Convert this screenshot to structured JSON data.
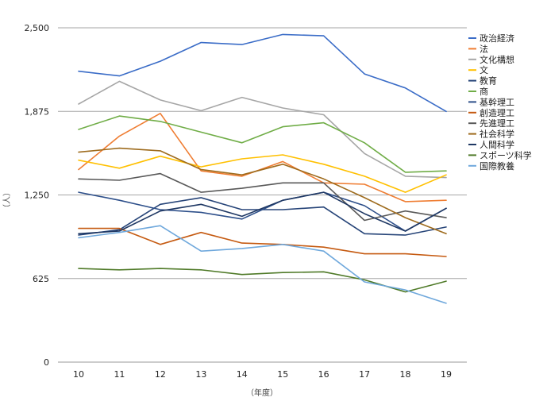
{
  "chart_data": {
    "type": "line",
    "xlabel": "（年度）",
    "ylabel": "（人）",
    "x": [
      "10",
      "11",
      "12",
      "13",
      "14",
      "15",
      "16",
      "17",
      "18",
      "19"
    ],
    "ylim": [
      0,
      2500
    ],
    "yticks": [
      0,
      625,
      1250,
      1875,
      2500
    ],
    "ytick_labels": [
      "0",
      "625",
      "1,250",
      "1,875",
      "2,500"
    ],
    "grid": "horizontal",
    "legend_position": "right",
    "series": [
      {
        "name": "政治経済",
        "color": "#3a6cc7",
        "values": [
          2175,
          2140,
          2250,
          2390,
          2375,
          2450,
          2440,
          2155,
          2050,
          1875
        ]
      },
      {
        "name": "法",
        "color": "#ef7d32",
        "values": [
          1440,
          1690,
          1860,
          1430,
          1390,
          1500,
          1340,
          1330,
          1200,
          1210
        ]
      },
      {
        "name": "文化構想",
        "color": "#a6a6a6",
        "values": [
          1930,
          2100,
          1960,
          1880,
          1980,
          1900,
          1850,
          1560,
          1390,
          1380
        ]
      },
      {
        "name": "文",
        "color": "#ffc000",
        "values": [
          1510,
          1450,
          1540,
          1460,
          1520,
          1550,
          1480,
          1390,
          1270,
          1400
        ]
      },
      {
        "name": "教育",
        "color": "#264478",
        "values": [
          950,
          990,
          1180,
          1230,
          1140,
          1140,
          1160,
          960,
          950,
          1010
        ]
      },
      {
        "name": "商",
        "color": "#70ad47",
        "values": [
          1740,
          1840,
          1800,
          1720,
          1640,
          1760,
          1790,
          1640,
          1420,
          1430
        ]
      },
      {
        "name": "基幹理工",
        "color": "#2d4f8a",
        "values": [
          1270,
          1210,
          1140,
          1120,
          1070,
          1210,
          1270,
          1170,
          980,
          1150
        ]
      },
      {
        "name": "創造理工",
        "color": "#c55a11",
        "values": [
          1000,
          1000,
          880,
          970,
          890,
          880,
          860,
          810,
          810,
          790
        ]
      },
      {
        "name": "先進理工",
        "color": "#595959",
        "values": [
          1370,
          1360,
          1410,
          1270,
          1300,
          1340,
          1340,
          1060,
          1130,
          1080
        ]
      },
      {
        "name": "社会科学",
        "color": "#9e6b1d",
        "values": [
          1570,
          1600,
          1580,
          1440,
          1400,
          1480,
          1370,
          1230,
          1080,
          960
        ]
      },
      {
        "name": "人間科学",
        "color": "#1f3864",
        "values": [
          960,
          980,
          1130,
          1180,
          1090,
          1210,
          1270,
          1110,
          980,
          1150
        ]
      },
      {
        "name": "スポーツ科学",
        "color": "#4f7a28",
        "values": [
          700,
          690,
          700,
          690,
          655,
          670,
          675,
          615,
          525,
          605
        ]
      },
      {
        "name": "国際教養",
        "color": "#6fa8dc",
        "values": [
          930,
          970,
          1020,
          830,
          850,
          880,
          830,
          600,
          540,
          440
        ]
      }
    ]
  }
}
